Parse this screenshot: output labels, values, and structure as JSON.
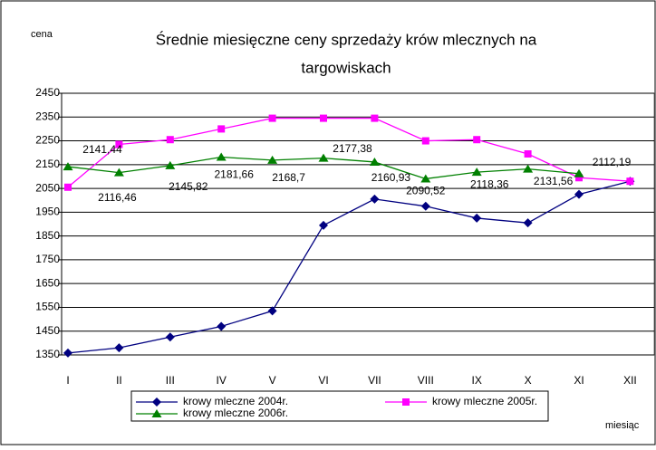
{
  "chart_data": {
    "type": "line",
    "title": [
      "Średnie miesięczne ceny sprzedaży krów mlecznych na",
      "targowiskach"
    ],
    "y_label": "cena",
    "x_label": "miesiąc",
    "categories": [
      "I",
      "II",
      "III",
      "IV",
      "V",
      "VI",
      "VII",
      "VIII",
      "IX",
      "X",
      "XI",
      "XII"
    ],
    "ylim": [
      1350,
      2450
    ],
    "yticks": [
      1350,
      1450,
      1550,
      1650,
      1750,
      1850,
      1950,
      2050,
      2150,
      2250,
      2350,
      2450
    ],
    "grid": true,
    "series": [
      {
        "name": "krowy  mleczne 2004r.",
        "color": "#000080",
        "marker": "diamond",
        "values": [
          1358,
          1380,
          1425,
          1470,
          1535,
          1895,
          2005,
          1975,
          1925,
          1905,
          2025,
          2080
        ]
      },
      {
        "name": "krowy  mleczne 2005r.",
        "color": "#ff00ff",
        "marker": "square",
        "values": [
          2055,
          2235,
          2255,
          2300,
          2345,
          2345,
          2345,
          2250,
          2255,
          2195,
          2095,
          2080
        ]
      },
      {
        "name": "krowy  mleczne 2006r.",
        "color": "#008000",
        "marker": "triangle",
        "values": [
          2141.44,
          2116.46,
          2145.82,
          2181.66,
          2168.7,
          2177.38,
          2160.93,
          2090.52,
          2118.36,
          2131.56,
          2112.19,
          null
        ],
        "value_labels": [
          "2141,44",
          "2116,46",
          "2145,82",
          "2181,66",
          "2168,7",
          "2177,38",
          "2160,93",
          "2090,52",
          "2118,36",
          "2131,56",
          "2112,19",
          null
        ]
      }
    ]
  }
}
